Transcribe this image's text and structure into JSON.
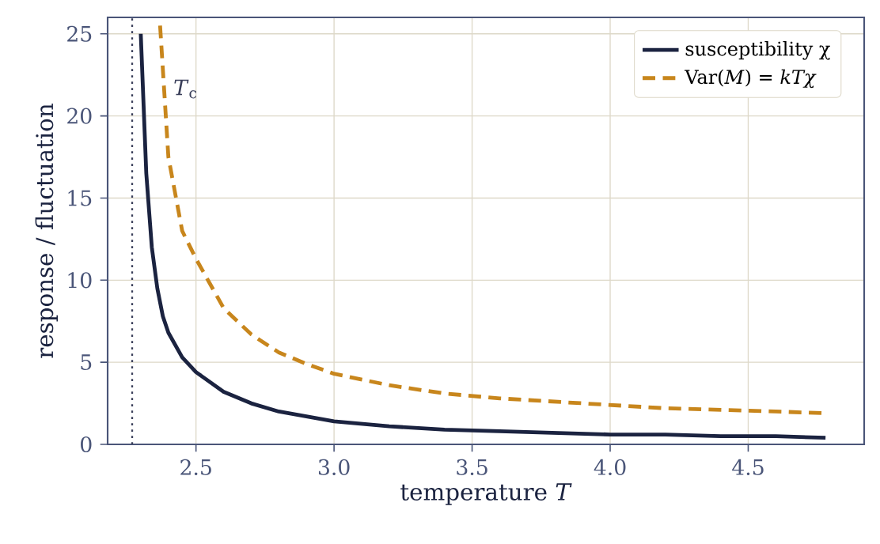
{
  "chart_data": {
    "type": "line",
    "xlabel": "temperature *T*",
    "ylabel": "response / fluctuation",
    "xlim": [
      2.18,
      4.92
    ],
    "ylim": [
      0,
      26
    ],
    "xticks": [
      2.5,
      {
        "value": 3.0,
        "label": "3.0"
      },
      3.5,
      {
        "value": 4.0,
        "label": "4.0"
      },
      4.5
    ],
    "yticks": [
      0,
      5,
      10,
      15,
      20,
      25
    ],
    "grid": true,
    "legend": "top right",
    "series": [
      {
        "name": "susceptibility χ",
        "color": "#1b2340",
        "line_style": "solid",
        "x": [
          2.3,
          2.32,
          2.34,
          2.36,
          2.38,
          2.4,
          2.45,
          2.5,
          2.6,
          2.7,
          2.8,
          2.9,
          3.0,
          3.2,
          3.4,
          3.6,
          3.8,
          4.0,
          4.2,
          4.4,
          4.6,
          4.78
        ],
        "values": [
          25.0,
          16.5,
          12.0,
          9.5,
          7.8,
          6.8,
          5.3,
          4.4,
          3.2,
          2.5,
          2.0,
          1.7,
          1.4,
          1.1,
          0.9,
          0.8,
          0.7,
          0.6,
          0.6,
          0.5,
          0.5,
          0.4
        ]
      },
      {
        "name": "Var(*M*) = *kTχ*",
        "color": "#c8861c",
        "line_style": "dashed",
        "x": [
          2.37,
          2.4,
          2.45,
          2.5,
          2.6,
          2.7,
          2.8,
          2.9,
          3.0,
          3.2,
          3.4,
          3.6,
          3.8,
          4.0,
          4.2,
          4.4,
          4.6,
          4.78
        ],
        "values": [
          25.5,
          17.5,
          13.0,
          11.3,
          8.3,
          6.7,
          5.6,
          4.9,
          4.3,
          3.6,
          3.1,
          2.8,
          2.6,
          2.4,
          2.2,
          2.1,
          2.0,
          1.9
        ]
      }
    ],
    "ref_lines": [
      {
        "axis": "x",
        "value": 2.269,
        "label": "*T*$_{c}$",
        "color": "#3a3f5a",
        "line_style": "dotted"
      }
    ]
  }
}
